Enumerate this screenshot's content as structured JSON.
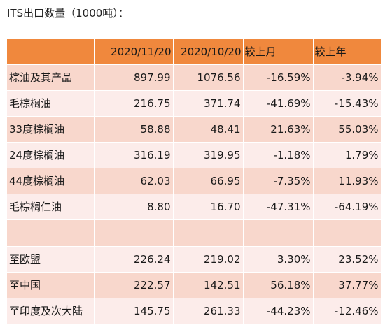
{
  "title": "ITS出口数量（1000吨）：",
  "table": {
    "headers": [
      "",
      "2020/11/20",
      "2020/10/20",
      "较上月",
      "较上年"
    ],
    "rows": [
      [
        "棕油及其产品",
        "897.99",
        "1076.56",
        "-16.59%",
        "-3.94%"
      ],
      [
        "毛棕榈油",
        "216.75",
        "371.74",
        "-41.69%",
        "-15.43%"
      ],
      [
        "33度棕榈油",
        "58.88",
        "48.41",
        "21.63%",
        "55.03%"
      ],
      [
        "24度棕榈油",
        "316.19",
        "319.95",
        "-1.18%",
        "1.79%"
      ],
      [
        "44度棕榈油",
        "62.03",
        "66.95",
        "-7.35%",
        "11.93%"
      ],
      [
        "毛棕榈仁油",
        "8.80",
        "16.70",
        "-47.31%",
        "-64.19%"
      ],
      [
        "",
        "",
        "",
        "",
        ""
      ],
      [
        "至欧盟",
        "226.24",
        "219.02",
        "3.30%",
        "23.52%"
      ],
      [
        "至中国",
        "222.57",
        "142.51",
        "56.18%",
        "37.77%"
      ],
      [
        "至印度及次大陆",
        "145.75",
        "261.33",
        "-44.23%",
        "-12.46%"
      ]
    ]
  },
  "colors": {
    "header_bg": "#f0883d",
    "row_odd_bg": "#f8d7cc",
    "row_even_bg": "#fcecea"
  }
}
